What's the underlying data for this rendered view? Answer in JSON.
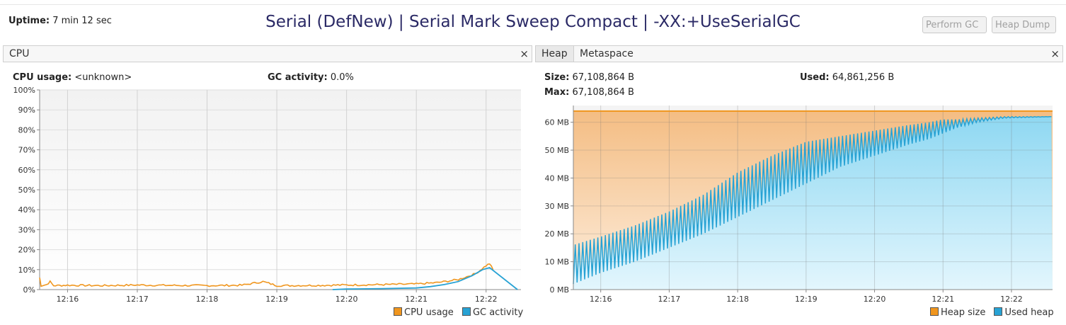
{
  "header": {
    "uptime_label": "Uptime:",
    "uptime_value": "7 min 12 sec",
    "title": "Serial (DefNew) | Serial Mark Sweep Compact | -XX:+UseSerialGC",
    "perform_gc": "Perform GC",
    "heap_dump": "Heap Dump"
  },
  "cpu_panel": {
    "tab": "CPU",
    "close": "×",
    "cpu_usage_label": "CPU usage:",
    "cpu_usage_value": "<unknown>",
    "gc_activity_label": "GC activity:",
    "gc_activity_value": "0.0%"
  },
  "heap_panel": {
    "tab_heap": "Heap",
    "tab_metaspace": "Metaspace",
    "close": "×",
    "size_label": "Size:",
    "size_value": "67,108,864 B",
    "max_label": "Max:",
    "max_value": "67,108,864 B",
    "used_label": "Used:",
    "used_value": "64,861,256 B"
  },
  "colors": {
    "cpu_line": "#f0961e",
    "gc_line": "#27a2d4",
    "heap_fill": "#f6c28a",
    "used_fill": "#a9e2f6"
  },
  "chart_data": [
    {
      "type": "line",
      "name_ref": "cpu",
      "x_ticks": [
        "12:16",
        "12:17",
        "12:18",
        "12:19",
        "12:20",
        "12:21",
        "12:22"
      ],
      "y_ticks": [
        "0%",
        "10%",
        "20%",
        "30%",
        "40%",
        "50%",
        "60%",
        "70%",
        "80%",
        "90%",
        "100%"
      ],
      "ylim": [
        0,
        100
      ],
      "x_minutes_range": [
        15.6,
        22.5
      ],
      "legend": [
        "CPU usage",
        "GC activity"
      ],
      "legend_position": "bottom-right",
      "grid": true,
      "series": [
        {
          "name": "CPU usage",
          "x_minutes": [
            15.6,
            15.62,
            15.7,
            15.75,
            15.8,
            16.0,
            16.5,
            17.0,
            17.5,
            18.0,
            18.5,
            18.8,
            19.0,
            19.5,
            20.0,
            20.5,
            21.0,
            21.3,
            21.6,
            21.85,
            22.0,
            22.05,
            22.1
          ],
          "values": [
            6,
            2,
            2.5,
            4,
            2,
            2.2,
            2.0,
            2.3,
            2.1,
            2.0,
            2.2,
            4,
            2.0,
            2.1,
            2.3,
            2.5,
            2.8,
            3.5,
            5,
            8,
            12,
            13,
            10
          ]
        },
        {
          "name": "GC activity",
          "x_minutes": [
            19.8,
            20.0,
            20.5,
            21.0,
            21.2,
            21.4,
            21.6,
            21.8,
            21.95,
            22.05,
            22.45
          ],
          "values": [
            0,
            0.3,
            0.5,
            0.8,
            1.5,
            2.5,
            4,
            7,
            10,
            11,
            0
          ]
        }
      ]
    },
    {
      "type": "area",
      "name_ref": "heap",
      "x_ticks": [
        "12:16",
        "12:17",
        "12:18",
        "12:19",
        "12:20",
        "12:21",
        "12:22"
      ],
      "y_ticks": [
        "0 MB",
        "10 MB",
        "20 MB",
        "30 MB",
        "40 MB",
        "50 MB",
        "60 MB"
      ],
      "ylim": [
        0,
        66
      ],
      "x_minutes_range": [
        15.6,
        22.6
      ],
      "legend": [
        "Heap size",
        "Used heap"
      ],
      "legend_position": "bottom-right",
      "grid": true,
      "series": [
        {
          "name": "Heap size",
          "x_minutes": [
            15.6,
            22.6
          ],
          "values": [
            64,
            64
          ]
        },
        {
          "name": "Used heap",
          "trend_x_minutes": [
            15.6,
            16.0,
            16.5,
            17.0,
            17.5,
            18.0,
            18.5,
            19.0,
            19.5,
            20.0,
            20.5,
            20.8,
            21.0,
            21.2,
            21.5,
            21.9,
            22.6
          ],
          "trend_peak_mb": [
            16,
            19,
            23,
            28,
            34,
            42,
            48,
            53,
            55,
            57,
            59,
            60,
            61,
            61,
            61.5,
            62,
            62
          ],
          "trend_trough_mb": [
            2,
            6,
            10,
            15,
            20,
            26,
            32,
            38,
            44,
            48,
            52,
            54,
            56,
            58,
            60,
            61.5,
            62
          ]
        }
      ]
    }
  ]
}
